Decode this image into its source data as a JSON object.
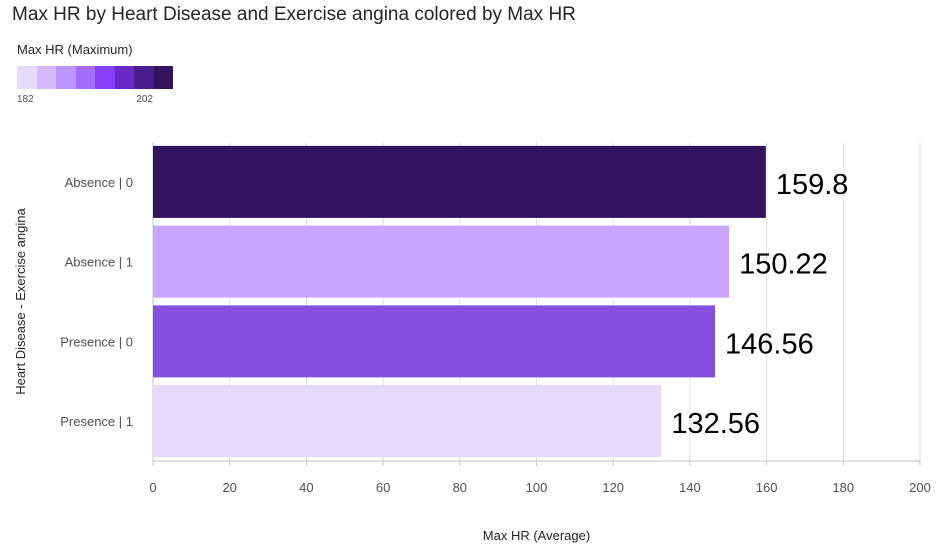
{
  "title": "Max HR by Heart Disease and Exercise angina colored by Max HR",
  "legend": {
    "title": "Max HR (Maximum)",
    "min_label": "182",
    "max_label": "202",
    "palette": [
      "#e8daff",
      "#d4bbff",
      "#be95ff",
      "#a56eff",
      "#8a3ffc",
      "#6929c4",
      "#491d8b",
      "#31135e"
    ]
  },
  "chart_data": {
    "type": "bar",
    "orientation": "horizontal",
    "title": "Max HR by Heart Disease and Exercise angina colored by Max HR",
    "xlabel": "Max HR (Average)",
    "ylabel": "Heart Disease - Exercise angina",
    "xlim": [
      0,
      200
    ],
    "xticks": [
      0,
      20,
      40,
      60,
      80,
      100,
      120,
      140,
      160,
      180,
      200
    ],
    "grid": true,
    "categories": [
      "Absence | 0",
      "Absence | 1",
      "Presence | 0",
      "Presence | 1"
    ],
    "values": [
      159.8,
      150.22,
      146.56,
      132.56
    ],
    "value_labels": [
      "159.8",
      "150.22",
      "146.56",
      "132.56"
    ],
    "bar_colors": [
      "#31135e",
      "#c8a6ff",
      "#8550e0",
      "#e6d9ff"
    ]
  }
}
